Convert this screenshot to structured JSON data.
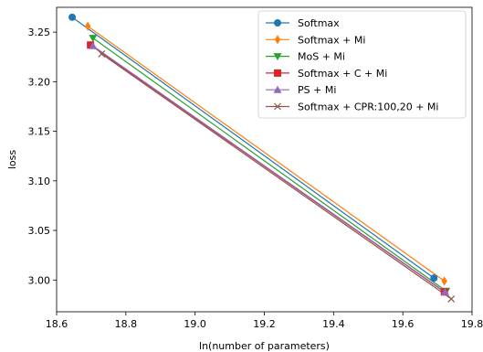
{
  "chart_data": {
    "type": "line",
    "xlabel": "ln(number of parameters)",
    "ylabel": "loss",
    "xlim": [
      18.6,
      19.8
    ],
    "ylim": [
      2.968,
      3.275
    ],
    "xticks": [
      "18.6",
      "18.8",
      "19.0",
      "19.2",
      "19.4",
      "19.6",
      "19.8"
    ],
    "yticks": [
      "3.00",
      "3.05",
      "3.10",
      "3.15",
      "3.20",
      "3.25"
    ],
    "legend": "top-right",
    "grid": false,
    "series": [
      {
        "name": "Softmax",
        "color": "#1f77b4",
        "marker": "circle",
        "x": [
          18.645,
          19.69
        ],
        "y": [
          3.265,
          3.002
        ]
      },
      {
        "name": "Softmax + Mi",
        "color": "#ff7f0e",
        "marker": "diamond",
        "x": [
          18.69,
          19.72
        ],
        "y": [
          3.256,
          2.999
        ]
      },
      {
        "name": "MoS + Mi",
        "color": "#2ca02c",
        "marker": "triangle-down",
        "x": [
          18.705,
          19.725
        ],
        "y": [
          3.244,
          2.989
        ]
      },
      {
        "name": "Softmax + C + Mi",
        "color": "#d62728",
        "marker": "square",
        "x": [
          18.698,
          19.72
        ],
        "y": [
          3.237,
          2.988
        ]
      },
      {
        "name": "PS + Mi",
        "color": "#9467bd",
        "marker": "triangle-up",
        "x": [
          18.705,
          19.722
        ],
        "y": [
          3.236,
          2.988
        ]
      },
      {
        "name": "Softmax + CPR:100,20 + Mi",
        "color": "#8c564b",
        "marker": "x",
        "x": [
          18.73,
          19.74
        ],
        "y": [
          3.228,
          2.981
        ]
      }
    ]
  }
}
